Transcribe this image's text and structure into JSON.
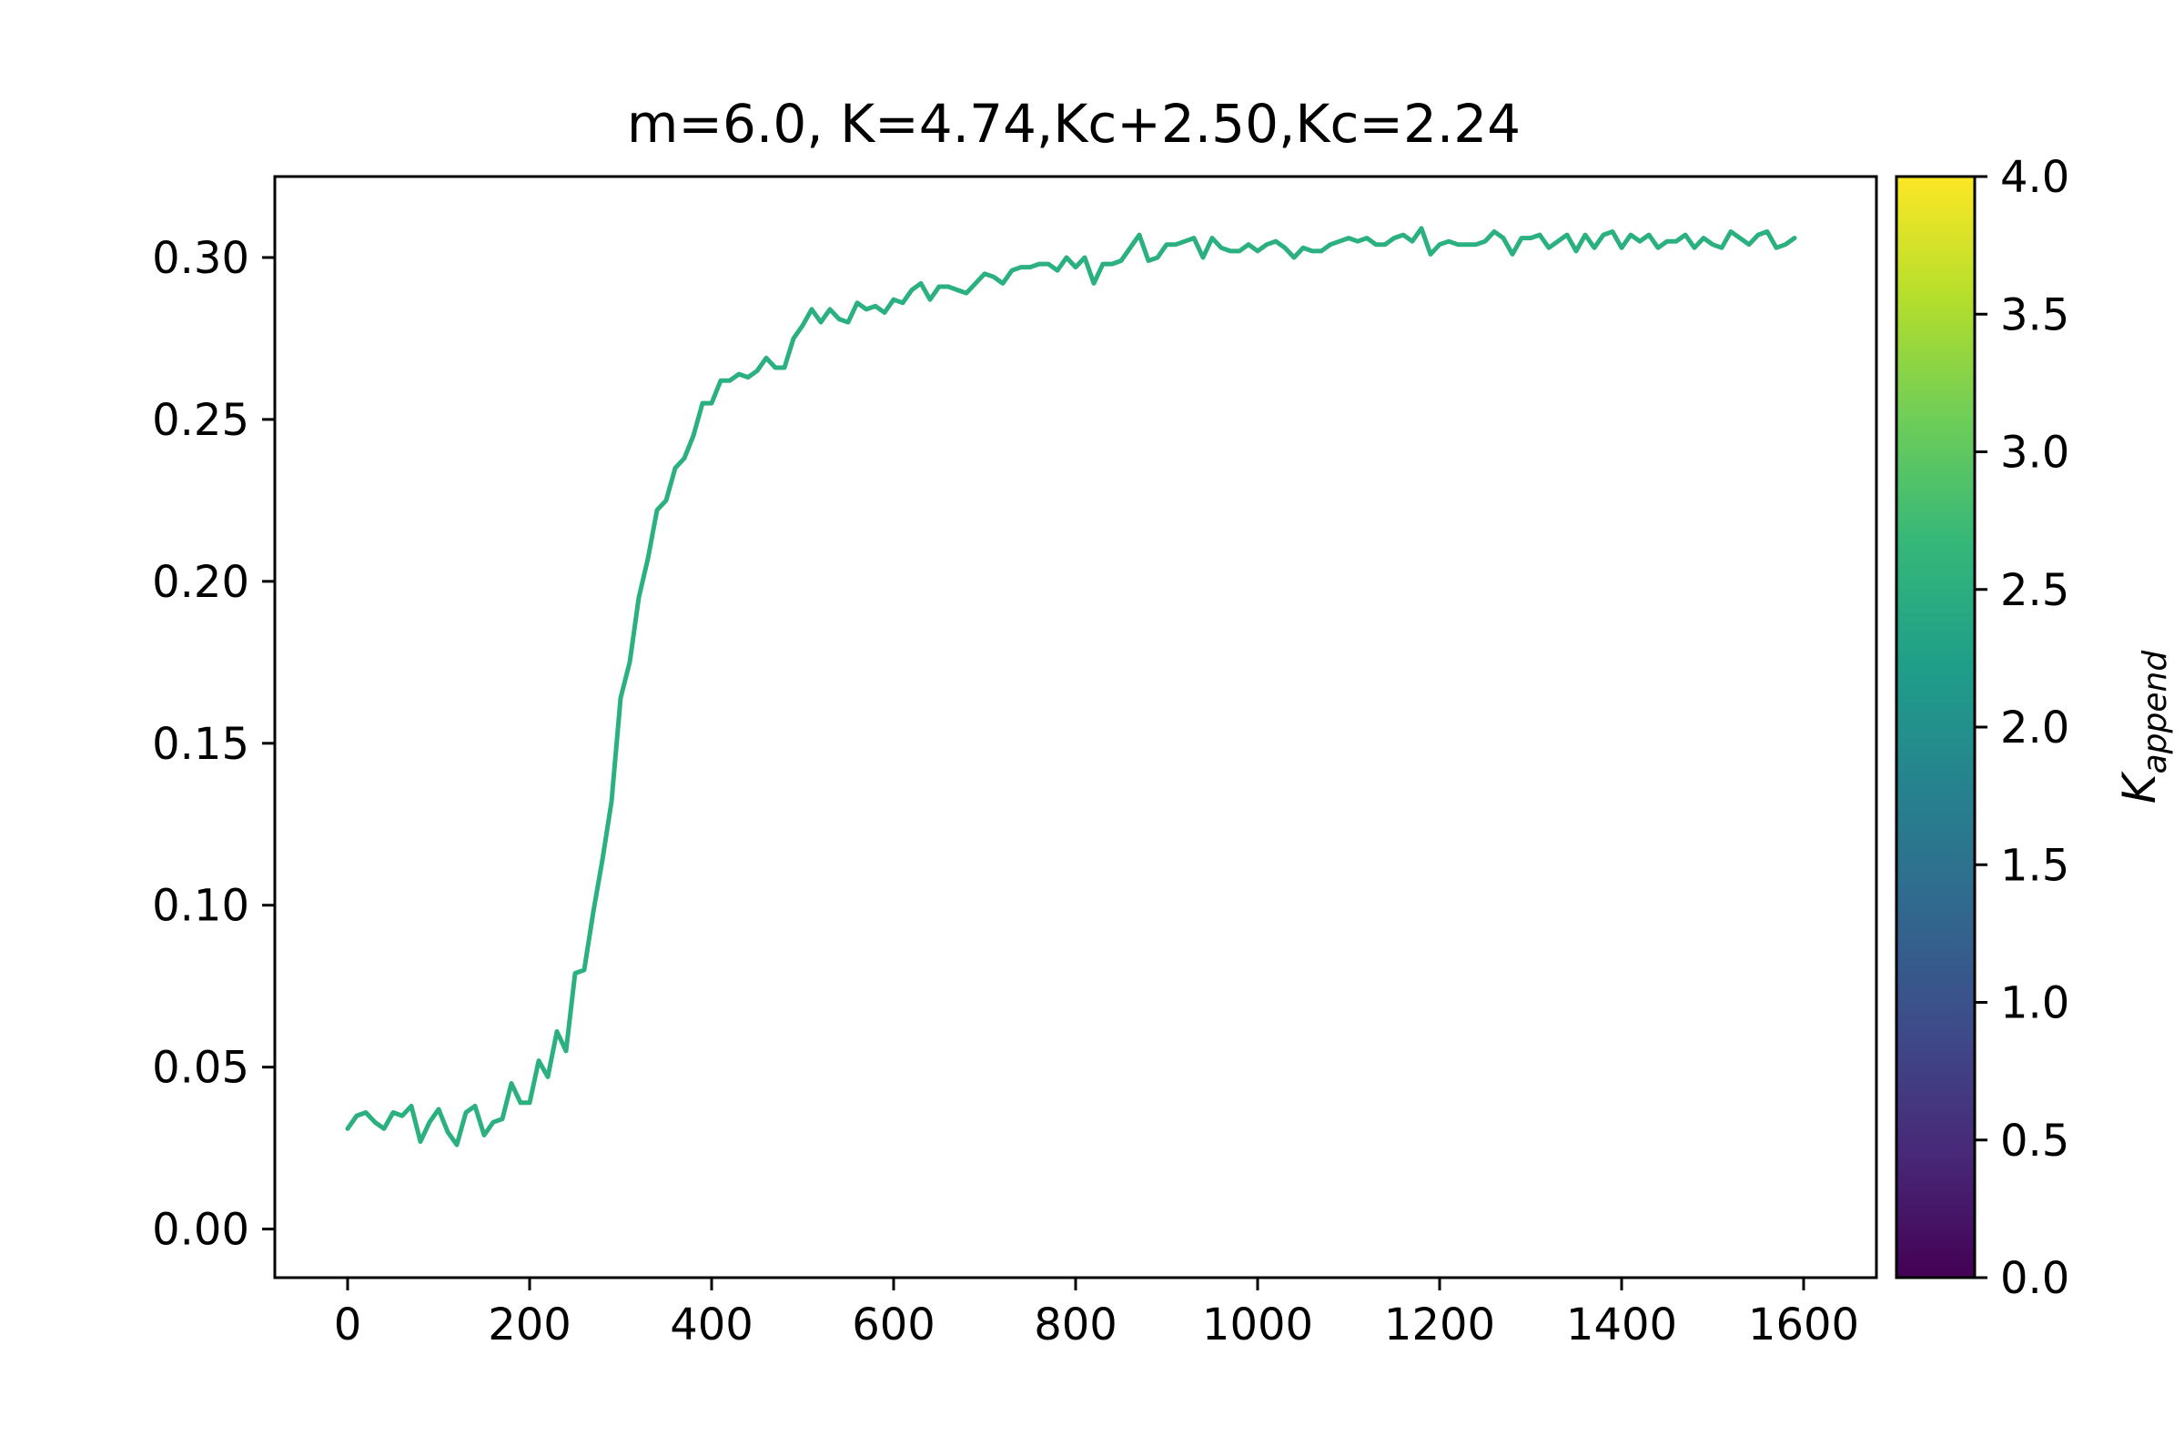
{
  "chart_data": {
    "type": "line",
    "title": "m=6.0, K=4.74,Kc+2.50,Kc=2.24",
    "xlabel": "",
    "ylabel": "",
    "xlim": [
      -80,
      1680
    ],
    "ylim": [
      -0.015,
      0.325
    ],
    "xticks": [
      0,
      200,
      400,
      600,
      800,
      1000,
      1200,
      1400,
      1600
    ],
    "xtick_labels": [
      "0",
      "200",
      "400",
      "600",
      "800",
      "1000",
      "1200",
      "1400",
      "1600"
    ],
    "yticks": [
      0.0,
      0.05,
      0.1,
      0.15,
      0.2,
      0.25,
      0.3
    ],
    "ytick_labels": [
      "0.00",
      "0.05",
      "0.10",
      "0.15",
      "0.20",
      "0.25",
      "0.30"
    ],
    "grid": false,
    "legend": "none",
    "series": [
      {
        "color": "#2bb07f",
        "x": [
          0,
          10,
          20,
          30,
          40,
          50,
          60,
          70,
          80,
          90,
          100,
          110,
          120,
          130,
          140,
          150,
          160,
          170,
          180,
          190,
          200,
          210,
          220,
          230,
          240,
          250,
          260,
          270,
          280,
          290,
          300,
          310,
          320,
          330,
          340,
          350,
          360,
          370,
          380,
          390,
          400,
          410,
          420,
          430,
          440,
          450,
          460,
          470,
          480,
          490,
          500,
          510,
          520,
          530,
          540,
          550,
          560,
          570,
          580,
          590,
          600,
          610,
          620,
          630,
          640,
          650,
          660,
          670,
          680,
          690,
          700,
          710,
          720,
          730,
          740,
          750,
          760,
          770,
          780,
          790,
          800,
          810,
          820,
          830,
          840,
          850,
          860,
          870,
          880,
          890,
          900,
          910,
          920,
          930,
          940,
          950,
          960,
          970,
          980,
          990,
          1000,
          1010,
          1020,
          1030,
          1040,
          1050,
          1060,
          1070,
          1080,
          1090,
          1100,
          1110,
          1120,
          1130,
          1140,
          1150,
          1160,
          1170,
          1180,
          1190,
          1200,
          1210,
          1220,
          1230,
          1240,
          1250,
          1260,
          1270,
          1280,
          1290,
          1300,
          1310,
          1320,
          1330,
          1340,
          1350,
          1360,
          1370,
          1380,
          1390,
          1400,
          1410,
          1420,
          1430,
          1440,
          1450,
          1460,
          1470,
          1480,
          1490,
          1500,
          1510,
          1520,
          1530,
          1540,
          1550,
          1560,
          1570,
          1580,
          1590
        ],
        "y": [
          0.031,
          0.035,
          0.036,
          0.033,
          0.031,
          0.036,
          0.035,
          0.038,
          0.027,
          0.033,
          0.037,
          0.03,
          0.026,
          0.036,
          0.038,
          0.029,
          0.033,
          0.034,
          0.045,
          0.039,
          0.039,
          0.052,
          0.047,
          0.061,
          0.055,
          0.079,
          0.08,
          0.098,
          0.114,
          0.132,
          0.164,
          0.175,
          0.195,
          0.207,
          0.222,
          0.225,
          0.235,
          0.238,
          0.245,
          0.255,
          0.255,
          0.262,
          0.262,
          0.264,
          0.263,
          0.265,
          0.269,
          0.266,
          0.266,
          0.275,
          0.279,
          0.284,
          0.28,
          0.284,
          0.281,
          0.28,
          0.286,
          0.284,
          0.285,
          0.283,
          0.287,
          0.286,
          0.29,
          0.292,
          0.287,
          0.291,
          0.291,
          0.29,
          0.289,
          0.292,
          0.295,
          0.294,
          0.292,
          0.296,
          0.297,
          0.297,
          0.298,
          0.298,
          0.296,
          0.3,
          0.297,
          0.3,
          0.292,
          0.298,
          0.298,
          0.299,
          0.303,
          0.307,
          0.299,
          0.3,
          0.304,
          0.304,
          0.305,
          0.306,
          0.3,
          0.306,
          0.303,
          0.302,
          0.302,
          0.304,
          0.302,
          0.304,
          0.305,
          0.303,
          0.3,
          0.303,
          0.302,
          0.302,
          0.304,
          0.305,
          0.306,
          0.305,
          0.306,
          0.304,
          0.304,
          0.306,
          0.307,
          0.305,
          0.309,
          0.301,
          0.304,
          0.305,
          0.304,
          0.304,
          0.304,
          0.305,
          0.308,
          0.306,
          0.301,
          0.306,
          0.306,
          0.307,
          0.303,
          0.305,
          0.307,
          0.302,
          0.307,
          0.303,
          0.307,
          0.308,
          0.303,
          0.307,
          0.305,
          0.307,
          0.303,
          0.305,
          0.305,
          0.307,
          0.303,
          0.306,
          0.304,
          0.303,
          0.308,
          0.306,
          0.304,
          0.307,
          0.308,
          0.303,
          0.304,
          0.306
        ]
      }
    ],
    "colorbar": {
      "label_main": "K",
      "label_sub": "append",
      "colormap": "viridis",
      "range": [
        0.0,
        4.0
      ],
      "ticks": [
        0.0,
        0.5,
        1.0,
        1.5,
        2.0,
        2.5,
        3.0,
        3.5,
        4.0
      ],
      "tick_labels": [
        "0.0",
        "0.5",
        "1.0",
        "1.5",
        "2.0",
        "2.5",
        "3.0",
        "3.5",
        "4.0"
      ],
      "stops": [
        "#440154",
        "#482878",
        "#3e4a89",
        "#31688e",
        "#26828e",
        "#1f9e89",
        "#35b779",
        "#6dcd59",
        "#b4de2c",
        "#fde725"
      ]
    }
  }
}
